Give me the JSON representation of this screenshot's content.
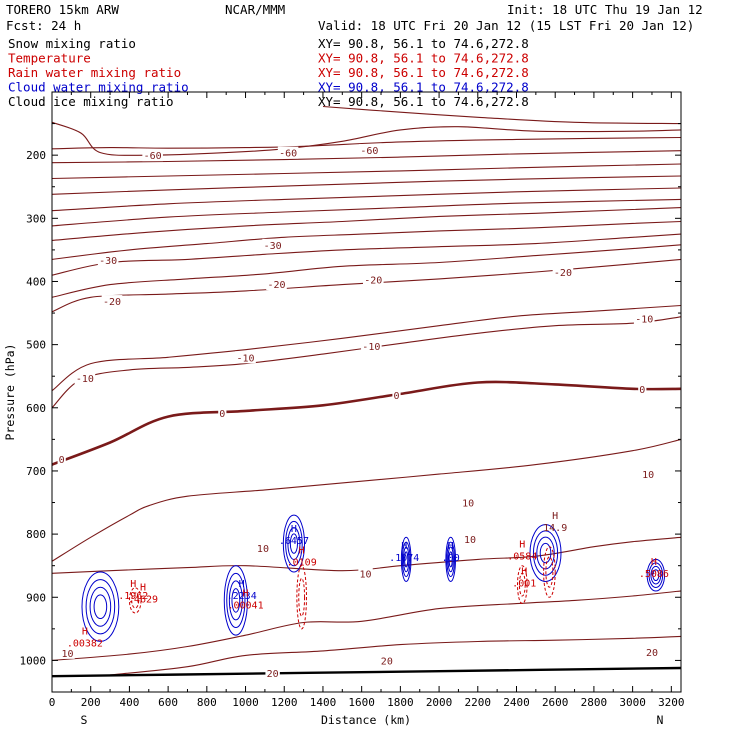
{
  "header": {
    "model": "TORERO  15km ARW",
    "center": "NCAR/MMM",
    "init": "Init: 18 UTC Thu 19 Jan 12",
    "fcst": "Fcst:    24 h",
    "valid": "Valid: 18 UTC Fri 20 Jan 12 (15 LST Fri 20 Jan 12)"
  },
  "fields": [
    {
      "name": "Snow mixing ratio",
      "xy": "XY=  90.8, 56.1 to  74.6,272.8",
      "color": "#000000",
      "xy_color": "#000000"
    },
    {
      "name": "Temperature",
      "xy": "XY=  90.8, 56.1 to  74.6,272.8",
      "color": "#cc0000",
      "xy_color": "#cc0000"
    },
    {
      "name": "Rain water mixing ratio",
      "xy": "XY=  90.8, 56.1 to  74.6,272.8",
      "color": "#cc0000",
      "xy_color": "#cc0000"
    },
    {
      "name": "Cloud water mixing ratio",
      "xy": "XY=  90.8, 56.1 to  74.6,272.8",
      "color": "#0000cc",
      "xy_color": "#0000cc"
    },
    {
      "name": "Cloud ice mixing ratio",
      "xy": "XY=  90.8, 56.1 to  74.6,272.8",
      "color": "#000000",
      "xy_color": "#000000"
    }
  ],
  "colors": {
    "temperature": "#7a1a1a",
    "rain": "#cc0000",
    "cloud_water": "#0000cc",
    "axis": "#000000"
  },
  "chart_data": {
    "type": "contour",
    "xlabel": "Distance (km)",
    "ylabel": "Pressure (hPa)",
    "xlim": [
      0,
      3250
    ],
    "ylim": [
      1050,
      100
    ],
    "x_ticks": [
      0,
      200,
      400,
      600,
      800,
      1000,
      1200,
      1400,
      1600,
      1800,
      2000,
      2200,
      2400,
      2600,
      2800,
      3000,
      3200
    ],
    "y_ticks": [
      200,
      300,
      400,
      500,
      600,
      700,
      800,
      900,
      1000
    ],
    "x_end_labels": {
      "left": "S",
      "right": "N"
    },
    "surface": [
      [
        0,
        1025
      ],
      [
        1000,
        1021
      ],
      [
        2000,
        1017
      ],
      [
        3250,
        1012
      ]
    ],
    "temperature_isotherms": [
      {
        "level": 0,
        "bold": true,
        "pts": [
          [
            0,
            690
          ],
          [
            300,
            655
          ],
          [
            600,
            614
          ],
          [
            1000,
            605
          ],
          [
            1400,
            596
          ],
          [
            1800,
            578
          ],
          [
            2200,
            560
          ],
          [
            2600,
            563
          ],
          [
            3000,
            570
          ],
          [
            3250,
            570
          ]
        ]
      },
      {
        "level": 10,
        "bold": false,
        "pts": [
          [
            0,
            843
          ],
          [
            200,
            805
          ],
          [
            400,
            770
          ],
          [
            500,
            755
          ],
          [
            700,
            740
          ],
          [
            1100,
            730
          ],
          [
            1500,
            719
          ],
          [
            2000,
            705
          ],
          [
            2500,
            690
          ],
          [
            3000,
            668
          ],
          [
            3250,
            650
          ]
        ]
      },
      {
        "level": 10,
        "bold": false,
        "pts": [
          [
            0,
            862
          ],
          [
            300,
            858
          ],
          [
            700,
            853
          ],
          [
            1000,
            850
          ],
          [
            1500,
            858
          ],
          [
            1800,
            850
          ],
          [
            2200,
            840
          ],
          [
            2500,
            835
          ],
          [
            2800,
            820
          ],
          [
            3000,
            812
          ],
          [
            3250,
            805
          ]
        ]
      },
      {
        "level": 20,
        "bold": false,
        "pts": [
          [
            0,
            1000
          ],
          [
            400,
            990
          ],
          [
            700,
            978
          ],
          [
            1000,
            960
          ],
          [
            1300,
            940
          ],
          [
            1600,
            938
          ],
          [
            2000,
            918
          ],
          [
            2400,
            910
          ],
          [
            2700,
            905
          ],
          [
            3000,
            898
          ],
          [
            3250,
            890
          ]
        ]
      },
      {
        "level": 20,
        "bold": false,
        "pts": [
          [
            300,
            1023
          ],
          [
            700,
            1010
          ],
          [
            1000,
            992
          ],
          [
            1400,
            985
          ],
          [
            1800,
            975
          ],
          [
            2200,
            970
          ],
          [
            2600,
            968
          ],
          [
            3000,
            965
          ],
          [
            3250,
            962
          ]
        ]
      },
      {
        "level": -10,
        "bold": false,
        "pts": [
          [
            0,
            600
          ],
          [
            150,
            555
          ],
          [
            400,
            540
          ],
          [
            700,
            536
          ],
          [
            1000,
            530
          ],
          [
            1400,
            515
          ],
          [
            1800,
            498
          ],
          [
            2200,
            482
          ],
          [
            2600,
            470
          ],
          [
            3000,
            466
          ],
          [
            3250,
            456
          ]
        ]
      },
      {
        "level": -10,
        "bold": false,
        "pts": [
          [
            0,
            573
          ],
          [
            200,
            530
          ],
          [
            600,
            520
          ],
          [
            1000,
            508
          ],
          [
            1500,
            490
          ],
          [
            2000,
            470
          ],
          [
            2400,
            455
          ],
          [
            2800,
            447
          ],
          [
            3250,
            438
          ]
        ]
      },
      {
        "level": -20,
        "bold": false,
        "pts": [
          [
            0,
            448
          ],
          [
            200,
            425
          ],
          [
            600,
            420
          ],
          [
            1000,
            415
          ],
          [
            1500,
            405
          ],
          [
            2000,
            396
          ],
          [
            2500,
            385
          ],
          [
            3000,
            372
          ],
          [
            3250,
            365
          ]
        ]
      },
      {
        "level": -20,
        "bold": false,
        "pts": [
          [
            0,
            425
          ],
          [
            300,
            405
          ],
          [
            700,
            396
          ],
          [
            1100,
            388
          ],
          [
            1500,
            376
          ],
          [
            2000,
            370
          ],
          [
            2500,
            359
          ],
          [
            3000,
            348
          ],
          [
            3250,
            342
          ]
        ]
      },
      {
        "level": -30,
        "bold": false,
        "pts": [
          [
            0,
            390
          ],
          [
            300,
            370
          ],
          [
            700,
            365
          ],
          [
            1100,
            357
          ],
          [
            1500,
            350
          ],
          [
            2000,
            345
          ],
          [
            2500,
            340
          ],
          [
            3000,
            330
          ],
          [
            3250,
            325
          ]
        ]
      },
      {
        "level": -30,
        "bold": false,
        "pts": [
          [
            0,
            365
          ],
          [
            400,
            350
          ],
          [
            800,
            340
          ],
          [
            1200,
            330
          ],
          [
            1600,
            325
          ],
          [
            2000,
            320
          ],
          [
            2500,
            315
          ],
          [
            3000,
            308
          ],
          [
            3250,
            305
          ]
        ]
      },
      {
        "level": -40,
        "bold": false,
        "pts": [
          [
            0,
            335
          ],
          [
            500,
            322
          ],
          [
            1000,
            312
          ],
          [
            1500,
            305
          ],
          [
            2000,
            297
          ],
          [
            2500,
            292
          ],
          [
            3000,
            286
          ],
          [
            3250,
            283
          ]
        ]
      },
      {
        "level": -50,
        "bold": false,
        "pts": [
          [
            0,
            312
          ],
          [
            600,
            298
          ],
          [
            1200,
            290
          ],
          [
            1800,
            283
          ],
          [
            2400,
            276
          ],
          [
            3250,
            270
          ]
        ]
      },
      {
        "level": -50,
        "bold": false,
        "pts": [
          [
            0,
            288
          ],
          [
            600,
            277
          ],
          [
            1200,
            270
          ],
          [
            1800,
            264
          ],
          [
            2400,
            258
          ],
          [
            3250,
            252
          ]
        ]
      },
      {
        "level": -60,
        "bold": false,
        "pts": [
          [
            0,
            262
          ],
          [
            600,
            255
          ],
          [
            1200,
            249
          ],
          [
            1800,
            243
          ],
          [
            2400,
            238
          ],
          [
            3250,
            233
          ]
        ]
      },
      {
        "level": -60,
        "bold": false,
        "pts": [
          [
            0,
            237
          ],
          [
            600,
            233
          ],
          [
            1200,
            229
          ],
          [
            1800,
            225
          ],
          [
            2400,
            220
          ],
          [
            3250,
            214
          ]
        ]
      },
      {
        "level": -60,
        "bold": false,
        "pts": [
          [
            0,
            212
          ],
          [
            600,
            210
          ],
          [
            1200,
            207
          ],
          [
            1800,
            203
          ],
          [
            2400,
            198
          ],
          [
            3250,
            193
          ]
        ]
      },
      {
        "level": -60,
        "bold": false,
        "pts": [
          [
            0,
            190
          ],
          [
            300,
            188
          ],
          [
            600,
            189
          ],
          [
            1000,
            188
          ],
          [
            1300,
            186
          ],
          [
            1800,
            179
          ],
          [
            2400,
            175
          ],
          [
            3250,
            172
          ]
        ]
      },
      {
        "level": -60,
        "bold": false,
        "pts": [
          [
            0,
            148
          ],
          [
            150,
            165
          ],
          [
            250,
            196
          ],
          [
            500,
            200
          ],
          [
            900,
            196
          ],
          [
            1200,
            190
          ],
          [
            1500,
            178
          ],
          [
            1800,
            160
          ],
          [
            2100,
            155
          ],
          [
            2500,
            162
          ],
          [
            3000,
            162
          ],
          [
            3250,
            160
          ]
        ]
      },
      {
        "level": -60,
        "bold": false,
        "pts": [
          [
            1400,
            123
          ],
          [
            1800,
            132
          ],
          [
            2200,
            140
          ],
          [
            2700,
            148
          ],
          [
            3250,
            150
          ]
        ]
      }
    ],
    "temperature_labels": [
      {
        "text": "-60",
        "x": 520,
        "p": 200
      },
      {
        "text": "-60",
        "x": 1220,
        "p": 196
      },
      {
        "text": "-60",
        "x": 1640,
        "p": 192
      },
      {
        "text": "-30",
        "x": 290,
        "p": 366
      },
      {
        "text": "-30",
        "x": 1140,
        "p": 342
      },
      {
        "text": "-20",
        "x": 1160,
        "p": 404
      },
      {
        "text": "-20",
        "x": 1660,
        "p": 397
      },
      {
        "text": "-20",
        "x": 2640,
        "p": 385
      },
      {
        "text": "-20",
        "x": 310,
        "p": 431
      },
      {
        "text": "-10",
        "x": 1000,
        "p": 520
      },
      {
        "text": "-10",
        "x": 1650,
        "p": 502
      },
      {
        "text": "-10",
        "x": 170,
        "p": 553
      },
      {
        "text": "-10",
        "x": 3060,
        "p": 459
      },
      {
        "text": "0",
        "x": 50,
        "p": 681
      },
      {
        "text": "0",
        "x": 880,
        "p": 608
      },
      {
        "text": "0",
        "x": 1780,
        "p": 580
      },
      {
        "text": "0",
        "x": 3050,
        "p": 570
      },
      {
        "text": "10",
        "x": 1090,
        "p": 822
      },
      {
        "text": "10",
        "x": 1620,
        "p": 862
      },
      {
        "text": "10",
        "x": 2150,
        "p": 750
      },
      {
        "text": "10",
        "x": 2160,
        "p": 808
      },
      {
        "text": "10",
        "x": 3080,
        "p": 705
      },
      {
        "text": "10",
        "x": 80,
        "p": 988
      },
      {
        "text": "20",
        "x": 1730,
        "p": 1000
      },
      {
        "text": "20",
        "x": 1140,
        "p": 1020
      },
      {
        "text": "20",
        "x": 3100,
        "p": 987
      }
    ],
    "cloud_water_cells": [
      {
        "cx": 250,
        "p": 915,
        "rx": 95,
        "rp": 55
      },
      {
        "cx": 950,
        "p": 905,
        "rx": 60,
        "rp": 55
      },
      {
        "cx": 1250,
        "p": 815,
        "rx": 55,
        "rp": 45
      },
      {
        "cx": 1830,
        "p": 840,
        "rx": 25,
        "rp": 35
      },
      {
        "cx": 2060,
        "p": 840,
        "rx": 25,
        "rp": 35
      },
      {
        "cx": 2550,
        "p": 830,
        "rx": 80,
        "rp": 45
      },
      {
        "cx": 3120,
        "p": 865,
        "rx": 45,
        "rp": 25
      }
    ],
    "rain_cells": [
      {
        "cx": 430,
        "p": 905,
        "rx": 30,
        "rp": 20
      },
      {
        "cx": 1290,
        "p": 900,
        "rx": 25,
        "rp": 50
      },
      {
        "cx": 2430,
        "p": 880,
        "rx": 25,
        "rp": 30
      },
      {
        "cx": 2570,
        "p": 860,
        "rx": 30,
        "rp": 40
      }
    ],
    "maxima": [
      {
        "text": "H",
        "value": ".1962",
        "x": 420,
        "p": 895,
        "color": "rain"
      },
      {
        "text": "H",
        "value": ".4629",
        "x": 470,
        "p": 900,
        "color": "rain"
      },
      {
        "text": "H",
        "value": ".00382",
        "x": 170,
        "p": 970,
        "color": "rain"
      },
      {
        "text": "H",
        "value": ".2234",
        "x": 980,
        "p": 895,
        "color": "cloud_water"
      },
      {
        "text": "H",
        "value": ".00041",
        "x": 1000,
        "p": 910,
        "color": "rain"
      },
      {
        "text": "H",
        "value": ".6457",
        "x": 1250,
        "p": 808,
        "color": "cloud_water"
      },
      {
        "text": "H",
        "value": ".0109",
        "x": 1290,
        "p": 842,
        "color": "rain"
      },
      {
        "text": "H",
        "value": ".1074",
        "x": 1820,
        "p": 835,
        "color": "cloud_water"
      },
      {
        "text": "H",
        "value": ".00",
        "x": 2060,
        "p": 835,
        "color": "cloud_water"
      },
      {
        "text": "H",
        "value": ".0584",
        "x": 2430,
        "p": 832,
        "color": "rain"
      },
      {
        "text": "H",
        "value": ".001",
        "x": 2440,
        "p": 875,
        "color": "rain"
      },
      {
        "text": "H",
        "value": "14.9",
        "x": 2600,
        "p": 787,
        "color": "temperature"
      },
      {
        "text": "H",
        "value": ".5086",
        "x": 3110,
        "p": 860,
        "color": "rain"
      }
    ]
  }
}
